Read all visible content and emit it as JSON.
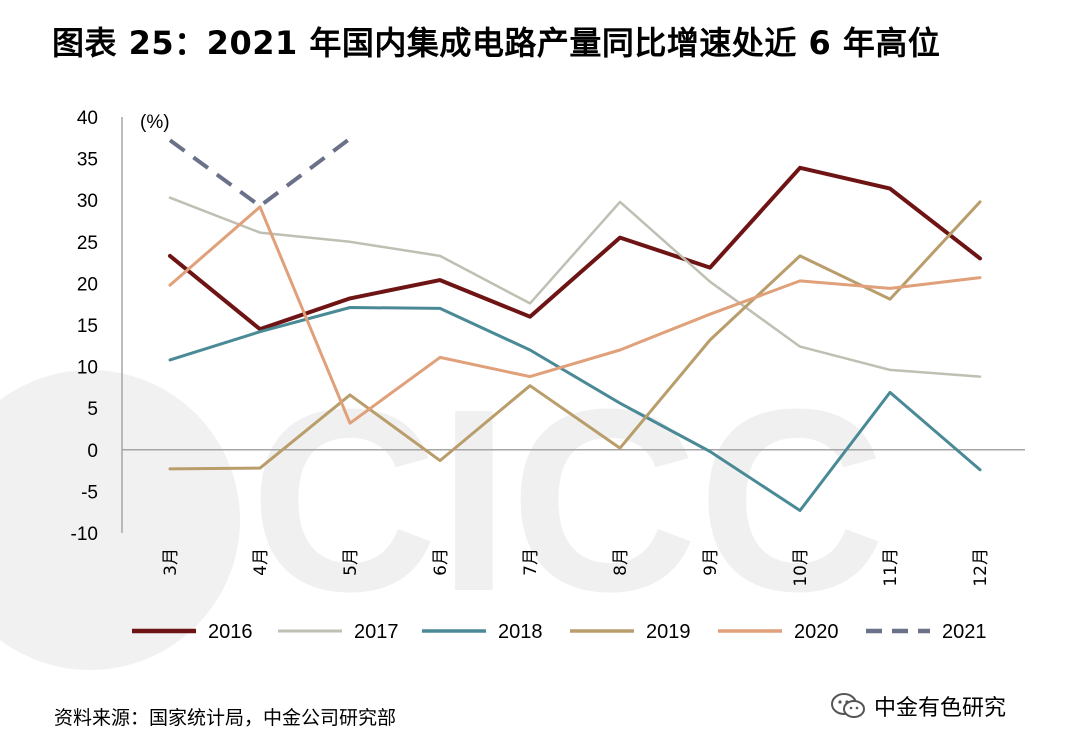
{
  "title": "图表 25：2021 年国内集成电路产量同比增速处近 6 年高位",
  "source": "资料来源：国家统计局，中金公司研究部",
  "brand": {
    "label": "中金有色研究",
    "icon": "wechat-icon"
  },
  "watermark": {
    "text": "CICC"
  },
  "chart_data": {
    "type": "line",
    "title": "",
    "xlabel": "",
    "ylabel": "(%)",
    "ylim": [
      -10,
      40
    ],
    "yticks": [
      40,
      35,
      30,
      25,
      20,
      15,
      10,
      5,
      0,
      -5,
      -10
    ],
    "categories": [
      "3月",
      "4月",
      "5月",
      "6月",
      "7月",
      "8月",
      "9月",
      "10月",
      "11月",
      "12月"
    ],
    "legend_position": "bottom",
    "grid": false,
    "series": [
      {
        "name": "2016",
        "color": "#6e1414",
        "dash": false,
        "width": 4,
        "values": [
          23.3,
          14.5,
          18.2,
          20.4,
          16.0,
          25.5,
          21.9,
          33.9,
          31.4,
          23.0
        ]
      },
      {
        "name": "2017",
        "color": "#bfbfb4",
        "dash": false,
        "width": 2.5,
        "values": [
          30.3,
          26.1,
          25.0,
          23.3,
          17.6,
          29.8,
          20.2,
          12.4,
          9.6,
          8.8
        ]
      },
      {
        "name": "2018",
        "color": "#4a8a96",
        "dash": false,
        "width": 3,
        "values": [
          10.8,
          14.2,
          17.1,
          17.0,
          12.0,
          5.6,
          -0.2,
          -7.3,
          6.9,
          -2.4
        ]
      },
      {
        "name": "2019",
        "color": "#b99d6b",
        "dash": false,
        "width": 3,
        "values": [
          -2.3,
          -2.2,
          6.6,
          -1.3,
          7.7,
          0.2,
          13.2,
          23.3,
          18.1,
          29.8
        ]
      },
      {
        "name": "2020",
        "color": "#e0a07a",
        "dash": false,
        "width": 3,
        "values": [
          19.8,
          29.2,
          3.2,
          11.1,
          8.8,
          12.0,
          16.3,
          20.3,
          19.4,
          20.7
        ]
      },
      {
        "name": "2021",
        "color": "#6a7189",
        "dash": true,
        "width": 4,
        "values": [
          37.2,
          29.3,
          37.4,
          null,
          null,
          null,
          null,
          null,
          null,
          null
        ]
      }
    ]
  }
}
